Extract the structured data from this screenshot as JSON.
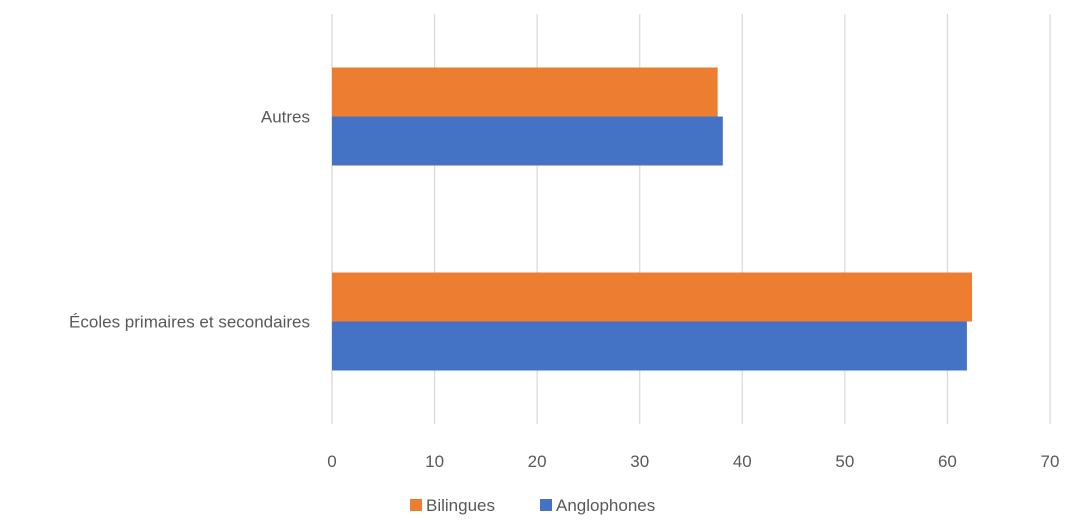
{
  "chart_data": {
    "type": "bar",
    "orientation": "horizontal",
    "categories": [
      "Écoles primaires et secondaires",
      "Autres"
    ],
    "series": [
      {
        "name": "Bilingues",
        "color": "#ED7D31",
        "values": [
          62.4,
          37.6
        ]
      },
      {
        "name": "Anglophones",
        "color": "#4472C4",
        "values": [
          61.9,
          38.1
        ]
      }
    ],
    "xlim": [
      0,
      70
    ],
    "xticks": [
      0,
      10,
      20,
      30,
      40,
      50,
      60,
      70
    ],
    "grid": true,
    "legend_position": "bottom"
  }
}
